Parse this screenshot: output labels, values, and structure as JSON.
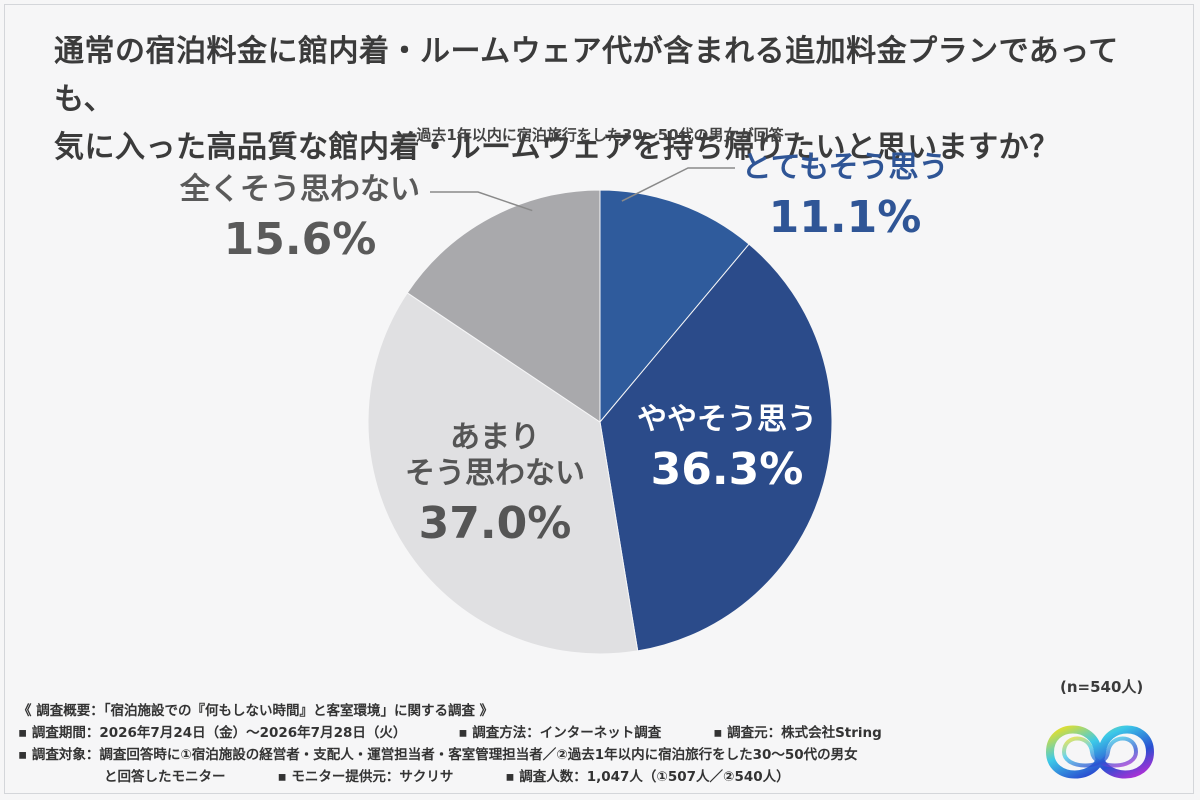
{
  "title": {
    "line1": "通常の宿泊料金に館内着・ルームウェア代が含まれる追加料金プランであっても、",
    "line2": "気に入った高品質な館内着・ルームウェアを持ち帰りたいと思いますか？"
  },
  "subtitle": "ー過去1年以内に宿泊旅行をした30～50代の男女が回答ー",
  "sample_size": "(n=540人)",
  "chart_data": {
    "type": "pie",
    "start_angle_deg": 0,
    "direction": "clockwise",
    "slices": [
      {
        "label": "とてもそう思う",
        "value": 11.1,
        "display": "11.1%",
        "color": "#2f5b9c"
      },
      {
        "label": "ややそう思う",
        "value": 36.3,
        "display": "36.3%",
        "color": "#2b4b8a"
      },
      {
        "label": "あまりそう思わない",
        "label_lines": [
          "あまり",
          "そう思わない"
        ],
        "value": 37.0,
        "display": "37.0%",
        "color": "#e0e0e2"
      },
      {
        "label": "全くそう思わない",
        "value": 15.6,
        "display": "15.6%",
        "color": "#a9a9ac"
      }
    ]
  },
  "footer": {
    "overview": "《 調査概要：「宿泊施設での『何もしない時間』と客室環境」に関する調査 》",
    "period": "▪ 調査期間：2026年7月24日（金）～2026年7月28日（火）",
    "method": "▪ 調査方法：インターネット調査",
    "source": "▪ 調査元：株式会社String",
    "target_line1": "▪ 調査対象：調査回答時に①宿泊施設の経営者・支配人・運営担当者・客室管理担当者／②過去1年以内に宿泊旅行をした30～50代の男女",
    "target_line2": "と回答したモニター",
    "provider": "▪ モニター提供元：サクリサ",
    "count": "▪ 調査人数：1,047人（①507人／②540人）"
  }
}
